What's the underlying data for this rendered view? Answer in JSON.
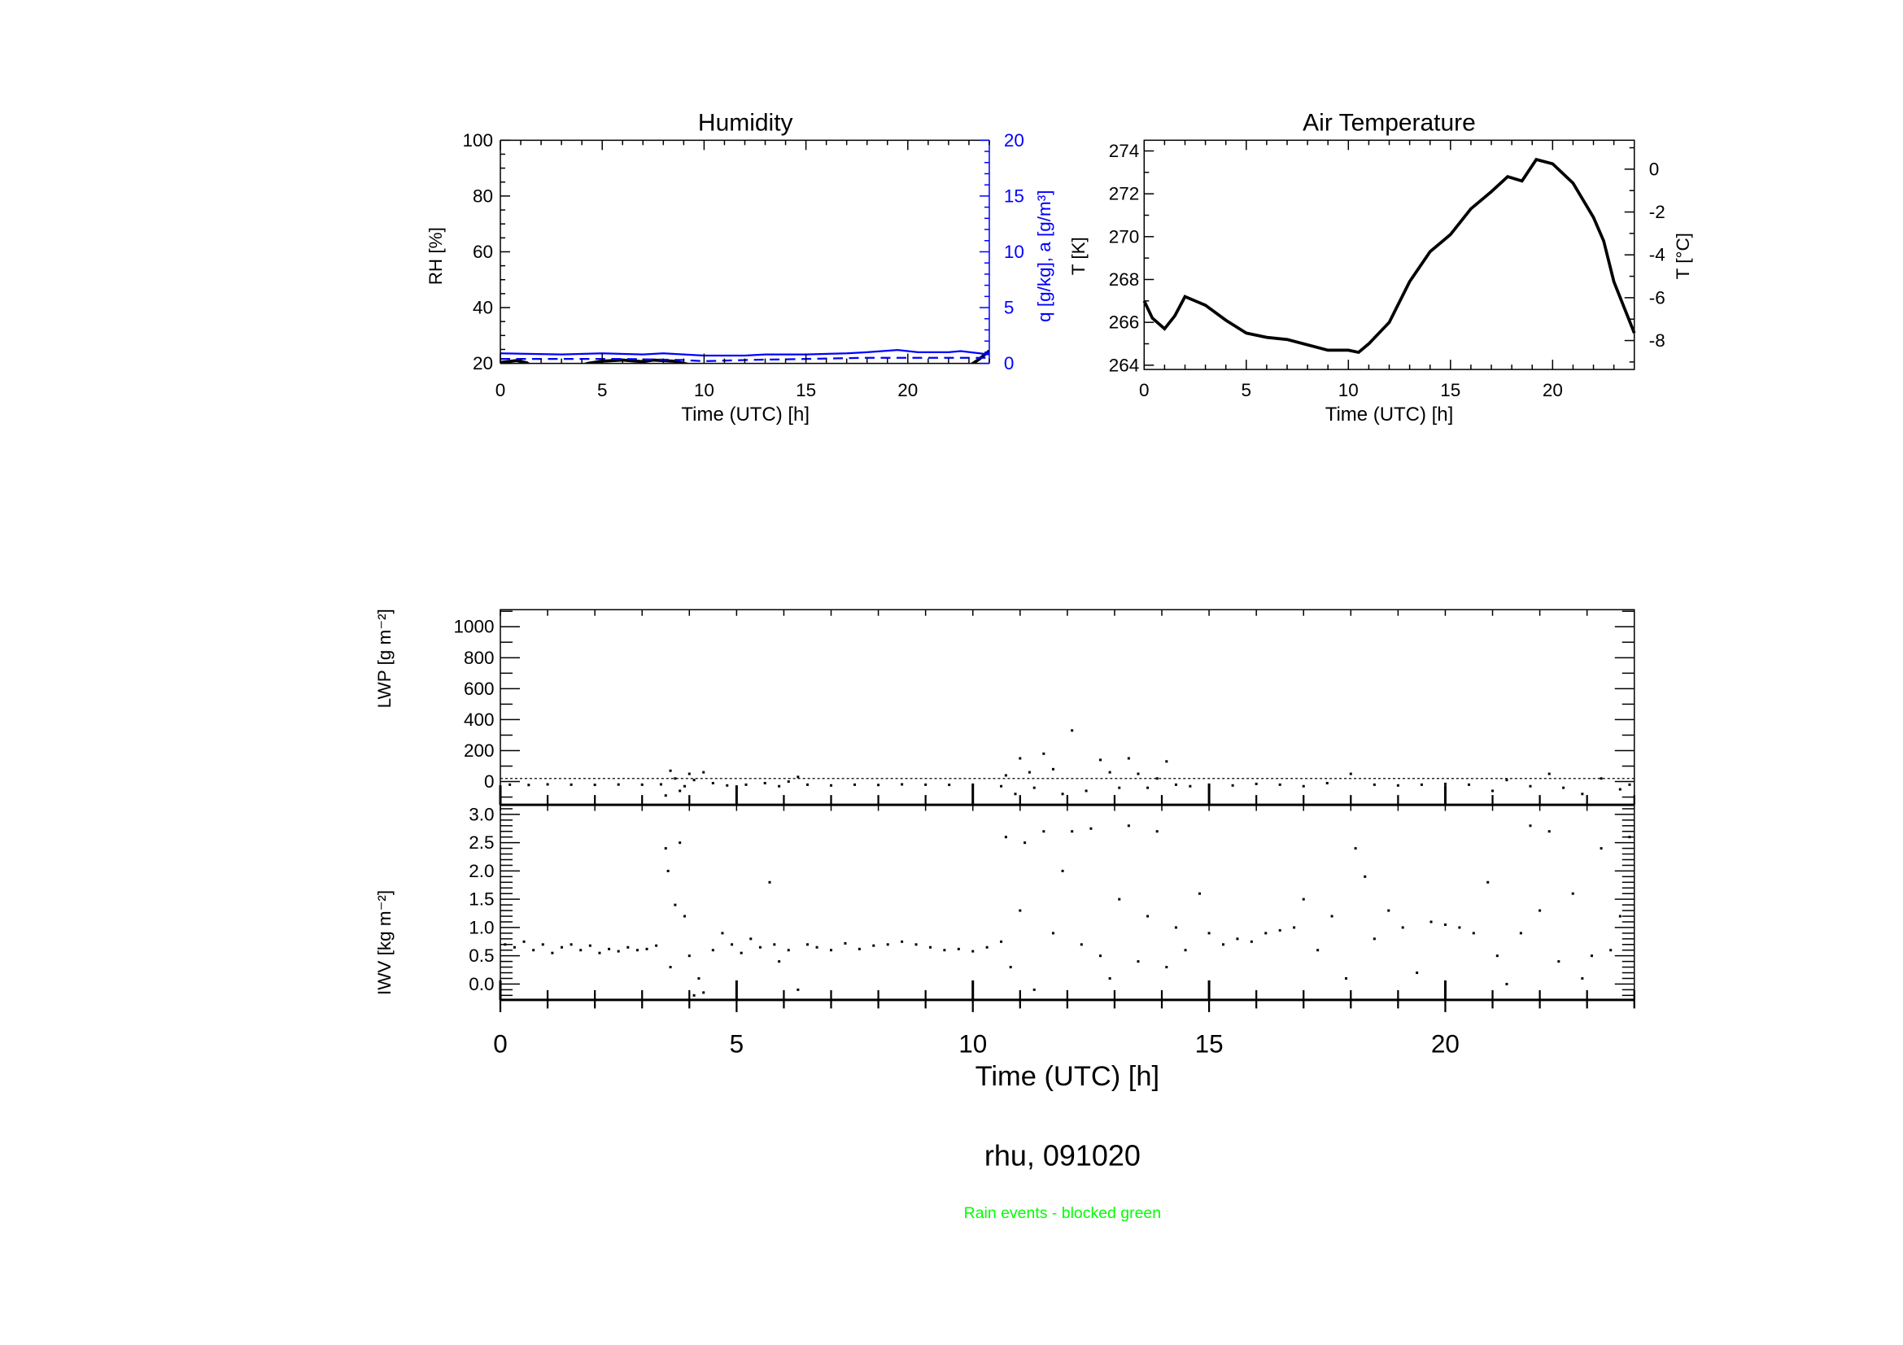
{
  "footer": {
    "title": "rhu, 091020",
    "note": "Rain events - blocked green",
    "note_color": "#00ff00"
  },
  "chart_data": [
    {
      "type": "line",
      "title": "Humidity",
      "xlabel": "Time (UTC) [h]",
      "ylabel": "RH [%]",
      "ylabel2": "q [g/kg], a [g/m³]",
      "xlim": [
        0,
        24
      ],
      "ylim": [
        20,
        100
      ],
      "ylim2": [
        0,
        20
      ],
      "xticks": [
        "0",
        "5",
        "10",
        "15",
        "20"
      ],
      "yticks": [
        "20",
        "40",
        "60",
        "80",
        "100"
      ],
      "yticks2": [
        "0",
        "5",
        "10",
        "15",
        "20"
      ],
      "axis2_color": "#0000ff",
      "series": [
        {
          "name": "RH",
          "axis": "left",
          "color": "#000000",
          "style": "solid",
          "points": [
            [
              0,
              20.3
            ],
            [
              0.8,
              21.0
            ],
            [
              1.3,
              20.2
            ],
            [
              1.7,
              18
            ],
            [
              3.4,
              18
            ],
            [
              4.3,
              20
            ],
            [
              5,
              20.8
            ],
            [
              6,
              21.2
            ],
            [
              7,
              20.6
            ],
            [
              7.5,
              21.2
            ],
            [
              8.5,
              20.8
            ],
            [
              9.5,
              19.2
            ],
            [
              10,
              18
            ],
            [
              22.8,
              18
            ],
            [
              23.5,
              21.5
            ],
            [
              24,
              24.5
            ]
          ]
        },
        {
          "name": "q",
          "axis": "right",
          "color": "#0000ff",
          "style": "solid",
          "points": [
            [
              0,
              0.9
            ],
            [
              3,
              0.8
            ],
            [
              5,
              0.9
            ],
            [
              7,
              0.8
            ],
            [
              8,
              0.9
            ],
            [
              10,
              0.7
            ],
            [
              12,
              0.7
            ],
            [
              13,
              0.8
            ],
            [
              15,
              0.8
            ],
            [
              17,
              0.9
            ],
            [
              18,
              1.0
            ],
            [
              19.5,
              1.2
            ],
            [
              20.5,
              1.0
            ],
            [
              22,
              1.0
            ],
            [
              22.6,
              1.1
            ],
            [
              24,
              0.8
            ]
          ]
        },
        {
          "name": "a",
          "axis": "right",
          "color": "#0000ff",
          "style": "dashed",
          "points": [
            [
              0,
              0.4
            ],
            [
              3,
              0.4
            ],
            [
              6,
              0.4
            ],
            [
              9,
              0.3
            ],
            [
              10,
              0.2
            ],
            [
              12,
              0.3
            ],
            [
              15,
              0.4
            ],
            [
              18,
              0.5
            ],
            [
              24,
              0.5
            ]
          ]
        }
      ]
    },
    {
      "type": "line",
      "title": "Air Temperature",
      "xlabel": "Time (UTC) [h]",
      "ylabel": "T [K]",
      "ylabel2": "T [°C]",
      "xlim": [
        0,
        24
      ],
      "ylim": [
        263.8,
        274.5
      ],
      "ylim2_celsius": [
        -9.35,
        1.35
      ],
      "xticks": [
        "0",
        "5",
        "10",
        "15",
        "20"
      ],
      "yticks": [
        "264",
        "266",
        "268",
        "270",
        "272",
        "274"
      ],
      "yticks2": [
        "-8",
        "-6",
        "-4",
        "-2",
        "0"
      ],
      "series": [
        {
          "name": "T",
          "color": "#000000",
          "points": [
            [
              0,
              267.0
            ],
            [
              0.4,
              266.2
            ],
            [
              1,
              265.7
            ],
            [
              1.5,
              266.3
            ],
            [
              2,
              267.2
            ],
            [
              2.5,
              267.0
            ],
            [
              3,
              266.8
            ],
            [
              4,
              266.1
            ],
            [
              5,
              265.5
            ],
            [
              6,
              265.3
            ],
            [
              7,
              265.2
            ],
            [
              8,
              264.95
            ],
            [
              9,
              264.7
            ],
            [
              10,
              264.7
            ],
            [
              10.5,
              264.6
            ],
            [
              11,
              265.0
            ],
            [
              12,
              266.0
            ],
            [
              13,
              267.9
            ],
            [
              14,
              269.3
            ],
            [
              15,
              270.1
            ],
            [
              16,
              271.3
            ],
            [
              17,
              272.1
            ],
            [
              17.8,
              272.8
            ],
            [
              18.5,
              272.6
            ],
            [
              19.2,
              273.6
            ],
            [
              20,
              273.4
            ],
            [
              21,
              272.5
            ],
            [
              22,
              270.9
            ],
            [
              22.5,
              269.8
            ],
            [
              23,
              267.9
            ],
            [
              24,
              265.5
            ]
          ]
        }
      ]
    },
    {
      "type": "scatter",
      "ylabel": "LWP [g m⁻²]",
      "xlim": [
        0,
        24
      ],
      "ylim": [
        -150,
        1110
      ],
      "yticks": [
        "0",
        "200",
        "400",
        "600",
        "800",
        "1000"
      ],
      "reference_line": 20,
      "points": [
        [
          0.2,
          -20
        ],
        [
          0.6,
          -22
        ],
        [
          1,
          -18
        ],
        [
          1.5,
          -20
        ],
        [
          2,
          -21
        ],
        [
          2.5,
          -19
        ],
        [
          3,
          -20
        ],
        [
          3.4,
          -18
        ],
        [
          3.5,
          -90
        ],
        [
          3.6,
          70
        ],
        [
          3.7,
          20
        ],
        [
          3.8,
          -60
        ],
        [
          3.9,
          -30
        ],
        [
          4.0,
          50
        ],
        [
          4.1,
          10
        ],
        [
          4.3,
          60
        ],
        [
          4.5,
          -10
        ],
        [
          4.8,
          -25
        ],
        [
          5.2,
          -20
        ],
        [
          5.6,
          -10
        ],
        [
          5.9,
          -30
        ],
        [
          6.1,
          0
        ],
        [
          6.3,
          30
        ],
        [
          6.5,
          -20
        ],
        [
          7,
          -25
        ],
        [
          7.5,
          -20
        ],
        [
          8,
          -22
        ],
        [
          8.5,
          -18
        ],
        [
          9,
          -20
        ],
        [
          9.5,
          -21
        ],
        [
          10,
          -20
        ],
        [
          10.6,
          -30
        ],
        [
          10.7,
          40
        ],
        [
          10.9,
          -80
        ],
        [
          11,
          150
        ],
        [
          11.2,
          60
        ],
        [
          11.3,
          -40
        ],
        [
          11.5,
          180
        ],
        [
          11.7,
          80
        ],
        [
          11.9,
          -80
        ],
        [
          12.1,
          330
        ],
        [
          12.4,
          -60
        ],
        [
          12.7,
          140
        ],
        [
          12.9,
          60
        ],
        [
          13.1,
          -40
        ],
        [
          13.3,
          150
        ],
        [
          13.5,
          50
        ],
        [
          13.7,
          -40
        ],
        [
          13.9,
          20
        ],
        [
          14.1,
          130
        ],
        [
          14.3,
          -20
        ],
        [
          14.6,
          -30
        ],
        [
          15,
          -20
        ],
        [
          15.5,
          -25
        ],
        [
          16,
          -15
        ],
        [
          16.5,
          -20
        ],
        [
          17,
          -30
        ],
        [
          17.5,
          -10
        ],
        [
          18,
          50
        ],
        [
          18.5,
          -20
        ],
        [
          19,
          -25
        ],
        [
          19.5,
          -20
        ],
        [
          20,
          -15
        ],
        [
          20.5,
          -20
        ],
        [
          21,
          -60
        ],
        [
          21.3,
          10
        ],
        [
          21.8,
          -30
        ],
        [
          22.2,
          50
        ],
        [
          22.5,
          -40
        ],
        [
          22.9,
          -80
        ],
        [
          23.3,
          20
        ],
        [
          23.7,
          -50
        ],
        [
          23.9,
          -20
        ]
      ]
    },
    {
      "type": "scatter",
      "ylabel": "IWV [kg m⁻²]",
      "xlabel": "Time (UTC) [h]",
      "xlim": [
        0,
        24
      ],
      "ylim": [
        -0.28,
        3.17
      ],
      "xticks": [
        "0",
        "5",
        "10",
        "15",
        "20"
      ],
      "yticks": [
        "0.0",
        "0.5",
        "1.0",
        "1.5",
        "2.0",
        "2.5",
        "3.0"
      ],
      "points": [
        [
          0.1,
          0.7
        ],
        [
          0.3,
          0.65
        ],
        [
          0.5,
          0.75
        ],
        [
          0.7,
          0.6
        ],
        [
          0.9,
          0.7
        ],
        [
          1.1,
          0.55
        ],
        [
          1.3,
          0.65
        ],
        [
          1.5,
          0.7
        ],
        [
          1.7,
          0.6
        ],
        [
          1.9,
          0.68
        ],
        [
          2.1,
          0.55
        ],
        [
          2.3,
          0.62
        ],
        [
          2.5,
          0.58
        ],
        [
          2.7,
          0.65
        ],
        [
          2.9,
          0.6
        ],
        [
          3.1,
          0.62
        ],
        [
          3.3,
          0.68
        ],
        [
          3.5,
          2.4
        ],
        [
          3.55,
          2.0
        ],
        [
          3.6,
          0.3
        ],
        [
          3.7,
          1.4
        ],
        [
          3.8,
          2.5
        ],
        [
          3.9,
          1.2
        ],
        [
          4.0,
          0.5
        ],
        [
          4.1,
          -0.2
        ],
        [
          4.2,
          0.1
        ],
        [
          4.3,
          -0.15
        ],
        [
          4.5,
          0.6
        ],
        [
          4.7,
          0.9
        ],
        [
          4.9,
          0.7
        ],
        [
          5.1,
          0.55
        ],
        [
          5.3,
          0.8
        ],
        [
          5.5,
          0.65
        ],
        [
          5.7,
          1.8
        ],
        [
          5.8,
          0.7
        ],
        [
          5.9,
          0.4
        ],
        [
          6.1,
          0.6
        ],
        [
          6.3,
          -0.1
        ],
        [
          6.5,
          0.7
        ],
        [
          6.7,
          0.65
        ],
        [
          7,
          0.6
        ],
        [
          7.3,
          0.72
        ],
        [
          7.6,
          0.62
        ],
        [
          7.9,
          0.68
        ],
        [
          8.2,
          0.7
        ],
        [
          8.5,
          0.75
        ],
        [
          8.8,
          0.7
        ],
        [
          9.1,
          0.65
        ],
        [
          9.4,
          0.6
        ],
        [
          9.7,
          0.62
        ],
        [
          10,
          0.58
        ],
        [
          10.3,
          0.65
        ],
        [
          10.6,
          0.75
        ],
        [
          10.7,
          2.6
        ],
        [
          10.8,
          0.3
        ],
        [
          11,
          1.3
        ],
        [
          11.1,
          2.5
        ],
        [
          11.3,
          -0.1
        ],
        [
          11.5,
          2.7
        ],
        [
          11.7,
          0.9
        ],
        [
          11.9,
          2.0
        ],
        [
          12.1,
          2.7
        ],
        [
          12.3,
          0.7
        ],
        [
          12.5,
          2.75
        ],
        [
          12.7,
          0.5
        ],
        [
          12.9,
          0.1
        ],
        [
          13.1,
          1.5
        ],
        [
          13.3,
          2.8
        ],
        [
          13.5,
          0.4
        ],
        [
          13.7,
          1.2
        ],
        [
          13.9,
          2.7
        ],
        [
          14.1,
          0.3
        ],
        [
          14.3,
          1.0
        ],
        [
          14.5,
          0.6
        ],
        [
          14.8,
          1.6
        ],
        [
          15,
          0.9
        ],
        [
          15.3,
          0.7
        ],
        [
          15.6,
          0.8
        ],
        [
          15.9,
          0.75
        ],
        [
          16.2,
          0.9
        ],
        [
          16.5,
          0.95
        ],
        [
          16.8,
          1.0
        ],
        [
          17,
          1.5
        ],
        [
          17.3,
          0.6
        ],
        [
          17.6,
          1.2
        ],
        [
          17.9,
          0.1
        ],
        [
          18.1,
          2.4
        ],
        [
          18.3,
          1.9
        ],
        [
          18.5,
          0.8
        ],
        [
          18.8,
          1.3
        ],
        [
          19.1,
          1.0
        ],
        [
          19.4,
          0.2
        ],
        [
          19.7,
          1.1
        ],
        [
          20,
          1.05
        ],
        [
          20.3,
          1.0
        ],
        [
          20.6,
          0.9
        ],
        [
          20.9,
          1.8
        ],
        [
          21.1,
          0.5
        ],
        [
          21.3,
          0.0
        ],
        [
          21.6,
          0.9
        ],
        [
          21.8,
          2.8
        ],
        [
          22.0,
          1.3
        ],
        [
          22.2,
          2.7
        ],
        [
          22.4,
          0.4
        ],
        [
          22.7,
          1.6
        ],
        [
          22.9,
          0.1
        ],
        [
          23.1,
          0.5
        ],
        [
          23.3,
          2.4
        ],
        [
          23.5,
          0.6
        ],
        [
          23.7,
          1.2
        ],
        [
          23.9,
          2.6
        ]
      ]
    }
  ]
}
